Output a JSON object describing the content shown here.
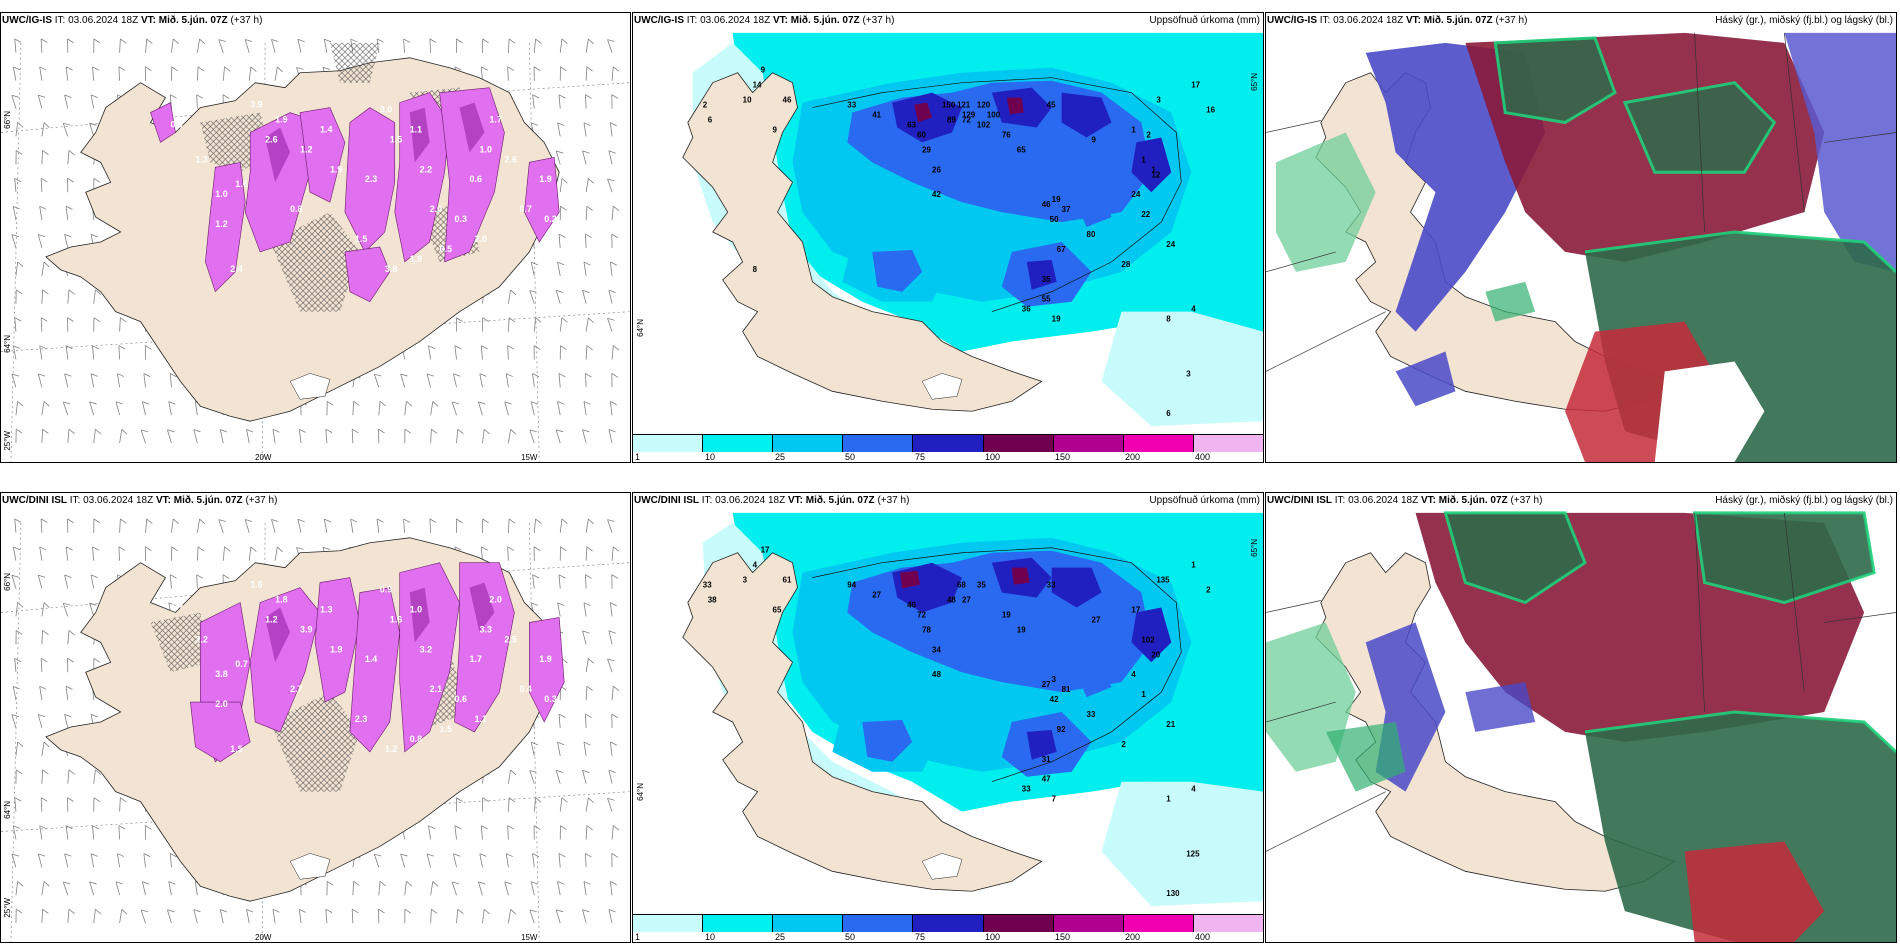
{
  "panels": [
    {
      "model": "UWC/IG-IS",
      "it_label": "IT:",
      "it_value": "03.06.2024 18Z",
      "vt_label": "VT:",
      "vt_value": "Mið. 5.jún. 07Z",
      "lead": "(+37 h)",
      "right": ""
    },
    {
      "model": "UWC/IG-IS",
      "it_label": "IT:",
      "it_value": "03.06.2024 18Z",
      "vt_label": "VT:",
      "vt_value": "Mið. 5.jún. 07Z",
      "lead": "(+37 h)",
      "right": "Uppsöfnuð úrkoma (mm)"
    },
    {
      "model": "UWC/IG-IS",
      "it_label": "IT:",
      "it_value": "03.06.2024 18Z",
      "vt_label": "VT:",
      "vt_value": "Mið. 5.jún. 07Z",
      "lead": "(+37 h)",
      "right": "Háský (gr.), miðský (fj.bl.) og lágský (bl.)"
    },
    {
      "model": "UWC/DINI ISL",
      "it_label": "IT:",
      "it_value": "03.06.2024 18Z",
      "vt_label": "VT:",
      "vt_value": "Mið. 5.jún. 07Z",
      "lead": "(+37 h)",
      "right": ""
    },
    {
      "model": "UWC/DINI ISL",
      "it_label": "IT:",
      "it_value": "03.06.2024 18Z",
      "vt_label": "VT:",
      "vt_value": "Mið. 5.jún. 07Z",
      "lead": "(+37 h)",
      "right": "Uppsöfnuð úrkoma (mm)"
    },
    {
      "model": "UWC/DINI ISL",
      "it_label": "IT:",
      "it_value": "03.06.2024 18Z",
      "vt_label": "VT:",
      "vt_value": "Mið. 5.jún. 07Z",
      "lead": "(+37 h)",
      "right": "Háský (gr.), miðský (fj.bl.) og lágský (bl.)"
    }
  ],
  "axes": {
    "lat66": "66°N",
    "lat64": "64°N",
    "lon25": "25°W",
    "lon20": "20W",
    "lon15": "15W",
    "lat65": "65°N"
  },
  "legend": {
    "ticks": [
      "1",
      "10",
      "25",
      "50",
      "75",
      "100",
      "150",
      "200",
      "400"
    ],
    "colors": [
      "#c8fbfb",
      "#00f0f0",
      "#00c8f0",
      "#2a6af0",
      "#2020c0",
      "#700050",
      "#b00090",
      "#f000b0",
      "#f0b4f0"
    ]
  },
  "precip_top": [
    "9",
    "14",
    "10",
    "2",
    "6",
    "46",
    "9",
    "33",
    "41",
    "63",
    "60",
    "29",
    "26",
    "42",
    "89",
    "72",
    "121",
    "120",
    "76",
    "65",
    "45",
    "1",
    "12",
    "24",
    "22",
    "24",
    "80",
    "9",
    "37",
    "50",
    "67",
    "46",
    "35",
    "55",
    "36",
    "19",
    "19",
    "28",
    "17",
    "16",
    "4",
    "8",
    "3",
    "6",
    "3",
    "1",
    "2",
    "1",
    "150",
    "129",
    "102",
    "100",
    "8"
  ],
  "precip_bottom": [
    "17",
    "4",
    "3",
    "33",
    "38",
    "61",
    "65",
    "94",
    "27",
    "46",
    "72",
    "78",
    "34",
    "48",
    "48",
    "27",
    "68",
    "35",
    "19",
    "19",
    "33",
    "17",
    "20",
    "4",
    "1",
    "21",
    "33",
    "27",
    "81",
    "42",
    "92",
    "27",
    "31",
    "47",
    "33",
    "7",
    "3",
    "2",
    "1",
    "2",
    "4",
    "1",
    "125",
    "130",
    "135",
    "102"
  ],
  "wind_top": [
    "0.9",
    "1.3",
    "1.0",
    "3.9",
    "2.6",
    "1.6",
    "1.2",
    "2.4",
    "1.9",
    "1.2",
    "0.8",
    "1.4",
    "1.9",
    "3.0",
    "2.3",
    "1.5",
    "1.5",
    "1.1",
    "2.2",
    "2.0",
    "0.5",
    "0.3",
    "0.6",
    "1.7",
    "1.0",
    "3.8",
    "1.9",
    "2.0",
    "2.6",
    "0.7",
    "1.9",
    "0.2"
  ],
  "wind_bottom": [
    "1.5",
    "2.2",
    "3.8",
    "1.6",
    "1.2",
    "0.7",
    "2.0",
    "1.5",
    "1.8",
    "3.9",
    "2.7",
    "1.3",
    "1.9",
    "0.9",
    "1.4",
    "2.3",
    "1.6",
    "1.0",
    "3.2",
    "2.1",
    "1.5",
    "0.6",
    "1.7",
    "2.0",
    "3.3",
    "1.2",
    "0.8",
    "1.1",
    "2.5",
    "0.4",
    "1.9",
    "0.3"
  ]
}
